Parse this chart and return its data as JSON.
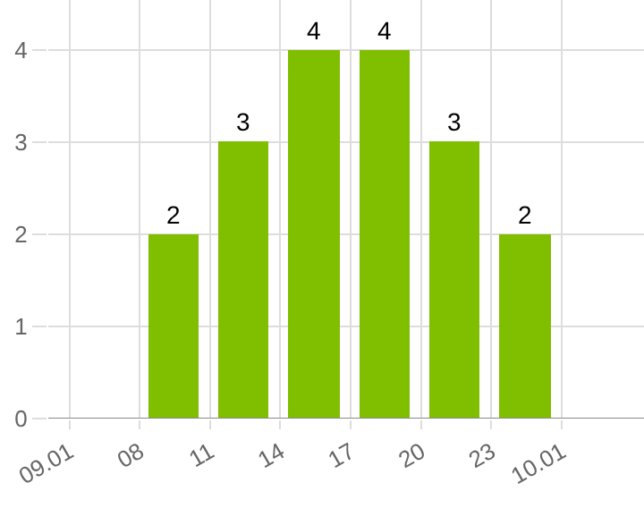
{
  "chart_data": {
    "type": "bar",
    "categories": [
      "09.01",
      "08",
      "11",
      "14",
      "17",
      "20",
      "23",
      "10.01"
    ],
    "values": [
      null,
      2,
      3,
      4,
      4,
      3,
      2,
      null
    ],
    "color": "#7fbf00",
    "ylim": [
      0,
      4.54
    ],
    "yticks": [
      0,
      1,
      2,
      3,
      4
    ],
    "grid": true,
    "data_labels": true
  }
}
